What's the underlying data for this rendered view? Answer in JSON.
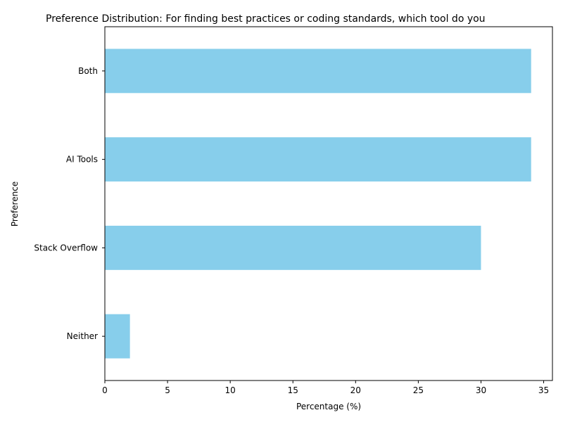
{
  "chart_data": {
    "type": "bar",
    "orientation": "horizontal",
    "title": "Preference Distribution: For finding best practices or coding standards, which tool do you",
    "xlabel": "Percentage (%)",
    "ylabel": "Preference",
    "categories": [
      "Neither",
      "Stack Overflow",
      "AI Tools",
      "Both"
    ],
    "values": [
      2,
      30,
      34,
      34
    ],
    "xlim": [
      0,
      35.7
    ],
    "xticks": [
      0,
      5,
      10,
      15,
      20,
      25,
      30,
      35
    ],
    "bar_color": "#87CEEB",
    "grid": false,
    "legend": "none"
  }
}
